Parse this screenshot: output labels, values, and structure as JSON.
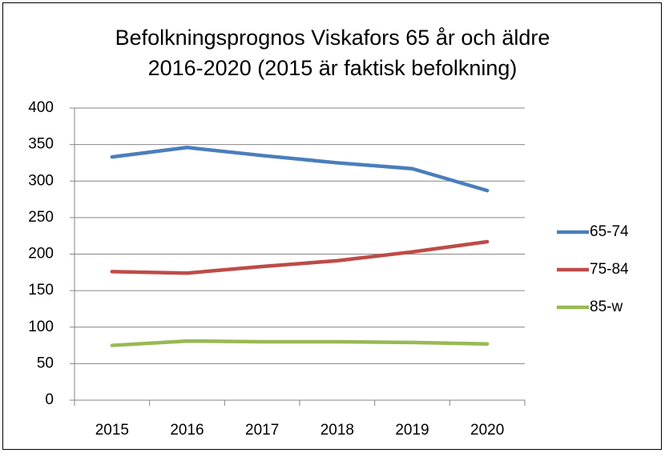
{
  "chart_data": {
    "type": "line",
    "title": "Befolkningsprognos Viskafors 65 år och äldre 2016-2020 (2015 är faktisk befolkning)",
    "categories": [
      "2015",
      "2016",
      "2017",
      "2018",
      "2019",
      "2020"
    ],
    "series": [
      {
        "name": "65-74",
        "color": "#4a7ebb",
        "values": [
          333,
          346,
          335,
          325,
          317,
          287
        ]
      },
      {
        "name": "75-84",
        "color": "#be4b48",
        "values": [
          176,
          174,
          183,
          191,
          203,
          217
        ]
      },
      {
        "name": "85-w",
        "color": "#98b954",
        "values": [
          75,
          81,
          80,
          80,
          79,
          77
        ]
      }
    ],
    "ylim": [
      0,
      400
    ],
    "yticks": [
      0,
      50,
      100,
      150,
      200,
      250,
      300,
      350,
      400
    ],
    "grid": true,
    "legend": "right"
  }
}
